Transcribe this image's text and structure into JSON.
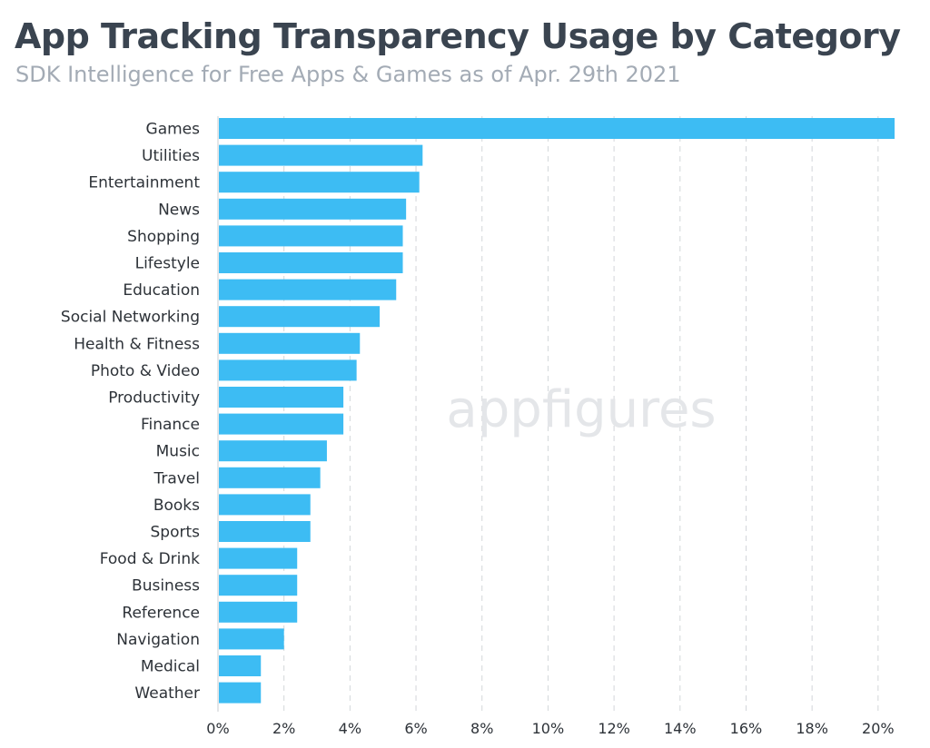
{
  "title": "App Tracking Transparency Usage by Category",
  "subtitle": "SDK Intelligence for Free Apps & Games as of Apr. 29th 2021",
  "watermark": "appfigures",
  "colors": {
    "bar": "#3dbcf3",
    "grid": "#d3d6da",
    "axis": "#c9ccd0"
  },
  "chart_data": {
    "type": "bar",
    "orientation": "horizontal",
    "title": "App Tracking Transparency Usage by Category",
    "subtitle": "SDK Intelligence for Free Apps & Games as of Apr. 29th 2021",
    "xlabel": "",
    "ylabel": "",
    "categories": [
      "Games",
      "Utilities",
      "Entertainment",
      "News",
      "Shopping",
      "Lifestyle",
      "Education",
      "Social Networking",
      "Health & Fitness",
      "Photo & Video",
      "Productivity",
      "Finance",
      "Music",
      "Travel",
      "Books",
      "Sports",
      "Food & Drink",
      "Business",
      "Reference",
      "Navigation",
      "Medical",
      "Weather"
    ],
    "values": [
      20.5,
      6.2,
      6.1,
      5.7,
      5.6,
      5.6,
      5.4,
      4.9,
      4.3,
      4.2,
      3.8,
      3.8,
      3.3,
      3.1,
      2.8,
      2.8,
      2.4,
      2.4,
      2.4,
      2.0,
      1.3,
      1.3
    ],
    "unit": "%",
    "xlim": [
      0,
      20.5
    ],
    "xticks": [
      0,
      2,
      4,
      6,
      8,
      10,
      12,
      14,
      16,
      18,
      20
    ],
    "xtick_labels": [
      "0%",
      "2%",
      "4%",
      "6%",
      "8%",
      "10%",
      "12%",
      "14%",
      "16%",
      "18%",
      "20%"
    ],
    "grid": "vertical dashed",
    "legend": "none"
  }
}
